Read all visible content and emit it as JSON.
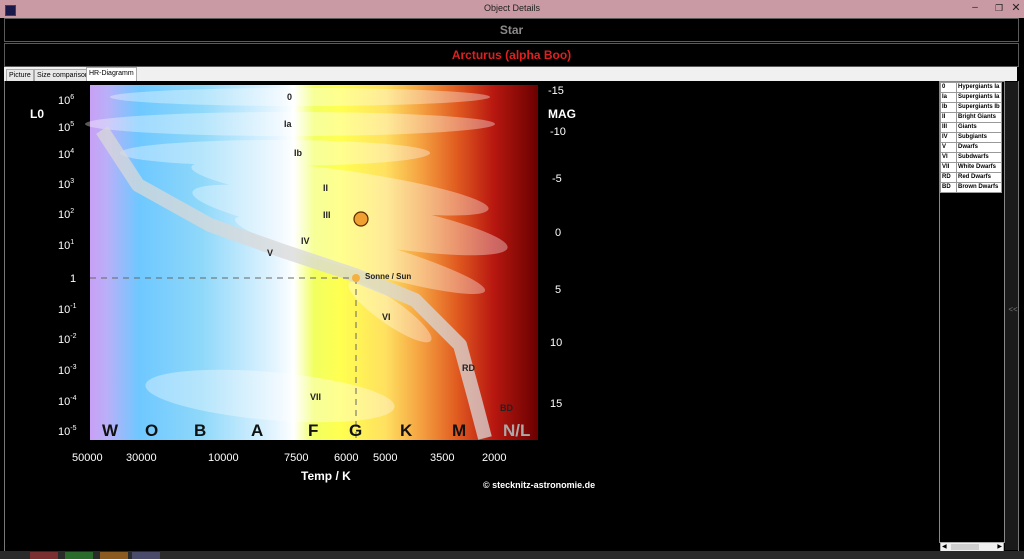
{
  "window": {
    "title": "Object Details"
  },
  "header": {
    "object_type": "Star",
    "object_name": "Arcturus (alpha Boo)"
  },
  "tabs": [
    {
      "label": "Picture"
    },
    {
      "label": "Size comparison"
    },
    {
      "label": "HR-Diagramm"
    }
  ],
  "chart": {
    "y_left_label": "L0",
    "y_right_label": "MAG",
    "x_label": "Temp / K",
    "copyright": "© stecknitz-astronomie.de",
    "lum_ticks": [
      {
        "base": "10",
        "exp": "6"
      },
      {
        "base": "10",
        "exp": "5"
      },
      {
        "base": "10",
        "exp": "4"
      },
      {
        "base": "10",
        "exp": "3"
      },
      {
        "base": "10",
        "exp": "2"
      },
      {
        "base": "10",
        "exp": "1"
      },
      {
        "base": "1",
        "exp": ""
      },
      {
        "base": "10",
        "exp": "-1"
      },
      {
        "base": "10",
        "exp": "-2"
      },
      {
        "base": "10",
        "exp": "-3"
      },
      {
        "base": "10",
        "exp": "-4"
      },
      {
        "base": "10",
        "exp": "-5"
      }
    ],
    "mag_ticks": [
      "-15",
      "-10",
      "-5",
      "0",
      "5",
      "10",
      "15"
    ],
    "temp_ticks": [
      "50000",
      "30000",
      "10000",
      "7500",
      "6000",
      "5000",
      "3500",
      "2000"
    ],
    "spectral_classes": [
      "W",
      "O",
      "B",
      "A",
      "F",
      "G",
      "K",
      "M",
      "N/L"
    ],
    "class_labels": [
      "0",
      "Ia",
      "Ib",
      "II",
      "III",
      "IV",
      "V",
      "VI",
      "VII",
      "RD",
      "BD"
    ],
    "sun_label": "Sonne / Sun",
    "colors": {
      "star": "#f0a030",
      "sun": "#f5b040",
      "band": "#dddddd"
    }
  },
  "legend": [
    {
      "code": "0",
      "label": "Hypergiants Ia"
    },
    {
      "code": "Ia",
      "label": "Supergiants Ia"
    },
    {
      "code": "Ib",
      "label": "Supergiants Ib"
    },
    {
      "code": "II",
      "label": "Bright Giants"
    },
    {
      "code": "III",
      "label": "Giants"
    },
    {
      "code": "IV",
      "label": "Subgiants"
    },
    {
      "code": "V",
      "label": "Dwarfs"
    },
    {
      "code": "VI",
      "label": "Subdwarfs"
    },
    {
      "code": "VII",
      "label": "White Dwarfs"
    },
    {
      "code": "RD",
      "label": "Red Dwarfs"
    },
    {
      "code": "BD",
      "label": "Brown Dwarfs"
    }
  ],
  "side_toggle": "<<"
}
